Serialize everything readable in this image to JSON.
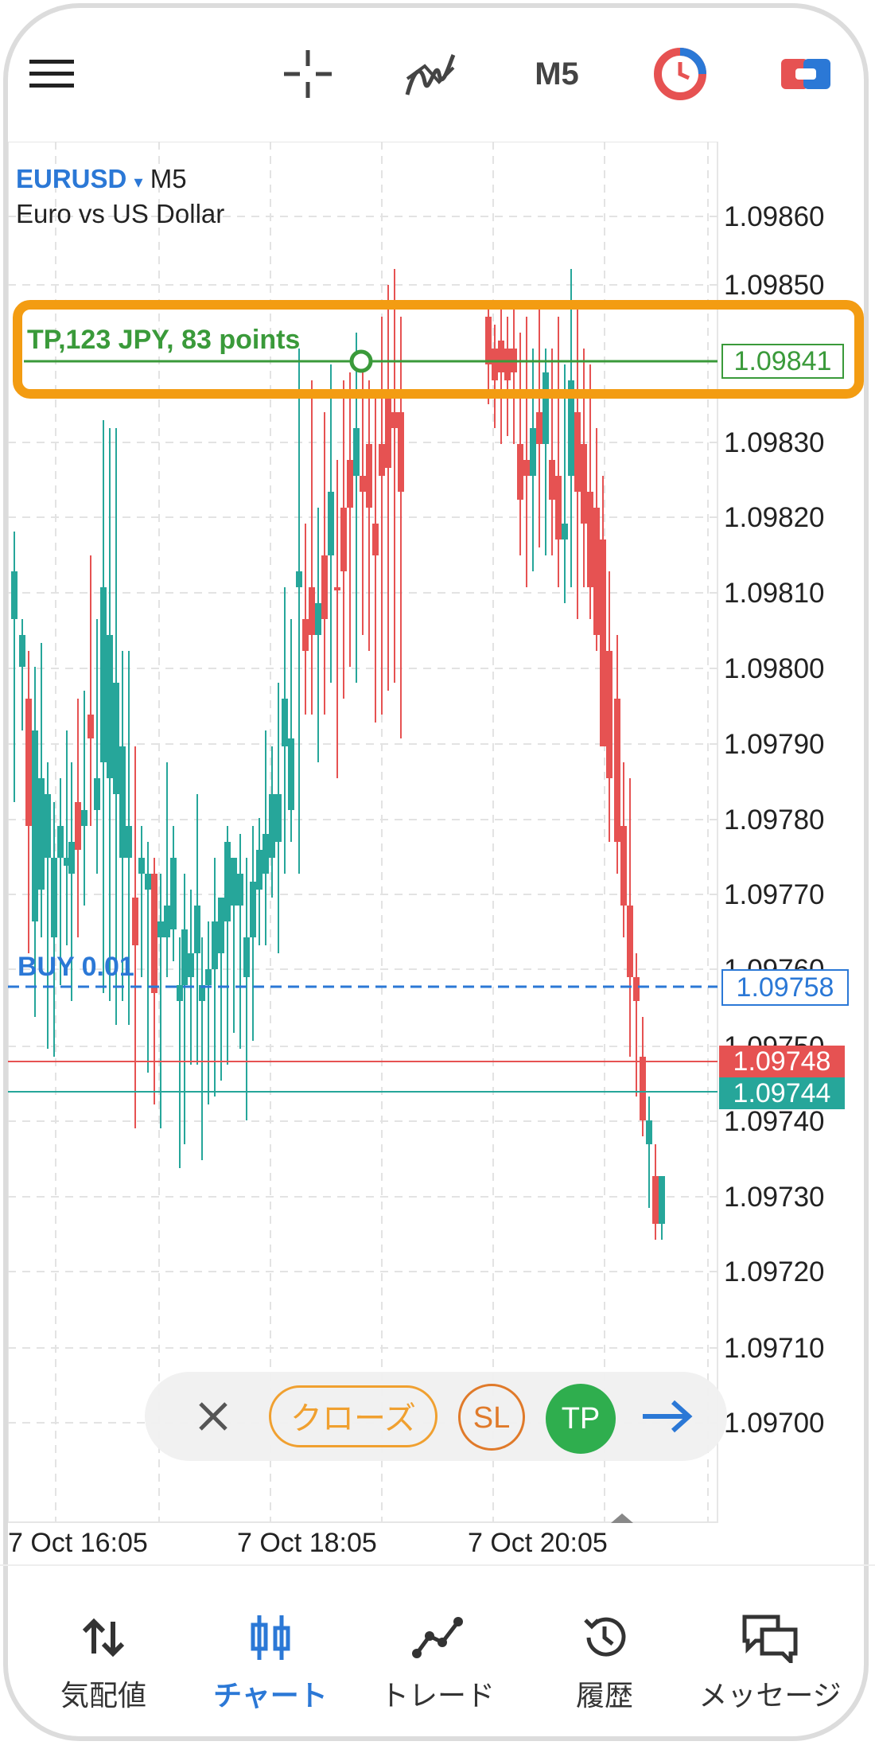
{
  "toolbar": {
    "menu_icon": "hamburger-menu-icon",
    "crosshair_icon": "crosshair-icon",
    "indicators_icon": "indicators-icon",
    "timeframe": "M5",
    "one_click_icon": "one-click-trading-icon",
    "color_scheme_icon": "color-scheme-icon"
  },
  "chart": {
    "symbol": "EURUSD",
    "symbol_timeframe": "M5",
    "description": "Euro vs US Dollar",
    "dropdown_glyph": "▾",
    "price_labels": [
      "1.09860",
      "1.09850",
      "1.09830",
      "1.09820",
      "1.09810",
      "1.09800",
      "1.09790",
      "1.09780",
      "1.09770",
      "1.09760",
      "1.09750",
      "1.09740",
      "1.09730",
      "1.09720",
      "1.09710",
      "1.09700"
    ],
    "time_labels": [
      "7 Oct 16:05",
      "7 Oct 18:05",
      "7 Oct 20:05"
    ],
    "colors": {
      "bull": "#26a69a",
      "bear": "#e65252",
      "tp": "#3a9a3a",
      "buy": "#2b78d6",
      "highlight": "#f39c12"
    }
  },
  "tp_line": {
    "label": "TP,123 JPY, 83 points",
    "price": "1.09841"
  },
  "buy_line": {
    "label": "BUY 0.01",
    "price": "1.09758"
  },
  "bid_price": "1.09748",
  "ask_price": "1.09744",
  "actions": {
    "close_icon": "close-icon",
    "close_position": "クローズ",
    "sl": "SL",
    "tp": "TP",
    "arrow_icon": "arrow-right-icon"
  },
  "nav": {
    "items": [
      {
        "label": "気配値",
        "icon": "quotes-icon"
      },
      {
        "label": "チャート",
        "icon": "chart-icon"
      },
      {
        "label": "トレード",
        "icon": "trade-icon"
      },
      {
        "label": "履歴",
        "icon": "history-icon"
      },
      {
        "label": "メッセージ",
        "icon": "messages-icon"
      }
    ],
    "active": "チャート"
  }
}
